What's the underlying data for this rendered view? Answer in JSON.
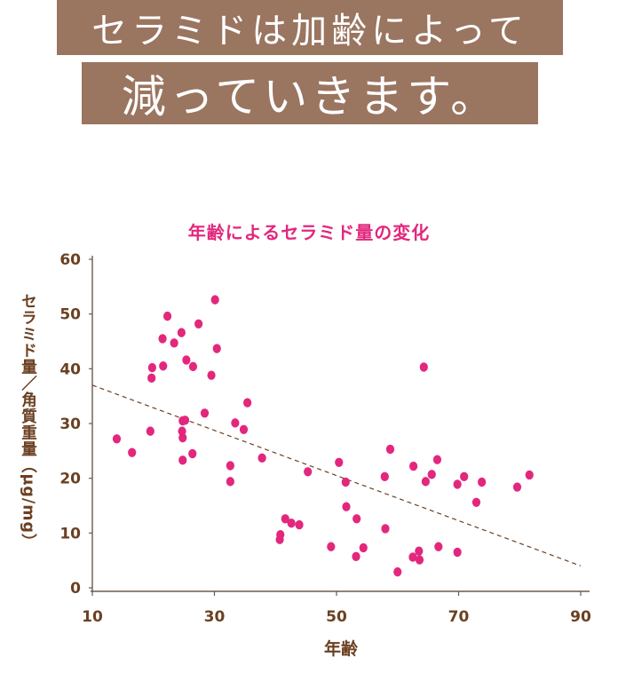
{
  "header": {
    "line1": "セラミドは加齢によって",
    "line2": "減っていきます。"
  },
  "colors": {
    "banner_bg": "#9a7560",
    "title": "#e3277d",
    "point": "#e3277d",
    "axis_text": "#6b4022",
    "trend": "#6b4022"
  },
  "chart_data": {
    "type": "scatter",
    "title": "年齢によるセラミド量の変化",
    "xlabel": "年齢",
    "ylabel": "セラミド量／角質重量（μg/mg）",
    "xlim": [
      10,
      90
    ],
    "ylim": [
      0,
      60
    ],
    "x_ticks": [
      10,
      30,
      50,
      70,
      90
    ],
    "y_ticks": [
      0,
      10,
      20,
      30,
      40,
      50,
      60
    ],
    "grid": false,
    "trendline": {
      "x": [
        10,
        90
      ],
      "y": [
        37,
        4
      ]
    },
    "points": [
      [
        14,
        27.2
      ],
      [
        16.5,
        24.7
      ],
      [
        19.5,
        28.6
      ],
      [
        19.7,
        38.3
      ],
      [
        19.8,
        40.2
      ],
      [
        21.5,
        45.5
      ],
      [
        21.6,
        40.5
      ],
      [
        22.3,
        49.6
      ],
      [
        23.4,
        44.7
      ],
      [
        24.6,
        46.6
      ],
      [
        24.7,
        28.6
      ],
      [
        24.8,
        27.4
      ],
      [
        24.8,
        30.5
      ],
      [
        24.8,
        23.3
      ],
      [
        25.2,
        30.6
      ],
      [
        25.4,
        41.6
      ],
      [
        26.4,
        24.5
      ],
      [
        26.5,
        40.4
      ],
      [
        27.4,
        48.2
      ],
      [
        28.4,
        31.9
      ],
      [
        29.5,
        38.8
      ],
      [
        30.1,
        52.6
      ],
      [
        30.4,
        43.7
      ],
      [
        32.6,
        22.3
      ],
      [
        32.6,
        19.4
      ],
      [
        33.4,
        30.1
      ],
      [
        34.8,
        28.9
      ],
      [
        35.4,
        33.8
      ],
      [
        37.8,
        23.7
      ],
      [
        40.7,
        8.8
      ],
      [
        40.8,
        9.7
      ],
      [
        41.6,
        12.6
      ],
      [
        42.6,
        11.8
      ],
      [
        43.9,
        11.5
      ],
      [
        45.3,
        21.2
      ],
      [
        49.1,
        7.5
      ],
      [
        50.4,
        22.9
      ],
      [
        51.5,
        19.3
      ],
      [
        51.6,
        14.8
      ],
      [
        53.2,
        5.7
      ],
      [
        53.3,
        12.6
      ],
      [
        54.4,
        7.3
      ],
      [
        57.9,
        20.3
      ],
      [
        58.0,
        10.8
      ],
      [
        58.8,
        25.3
      ],
      [
        60.0,
        2.9
      ],
      [
        62.5,
        5.6
      ],
      [
        62.6,
        22.2
      ],
      [
        63.5,
        6.7
      ],
      [
        63.6,
        5.1
      ],
      [
        64.3,
        40.3
      ],
      [
        64.6,
        19.4
      ],
      [
        65.6,
        20.7
      ],
      [
        66.5,
        23.4
      ],
      [
        66.7,
        7.5
      ],
      [
        69.8,
        6.5
      ],
      [
        69.8,
        18.9
      ],
      [
        70.9,
        20.3
      ],
      [
        72.9,
        15.6
      ],
      [
        73.8,
        19.3
      ],
      [
        79.6,
        18.4
      ],
      [
        81.6,
        20.6
      ]
    ]
  }
}
